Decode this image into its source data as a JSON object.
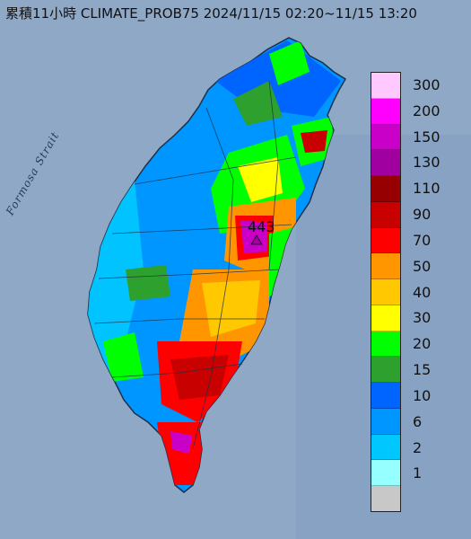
{
  "title": "累積11小時 CLIMATE_PROB75 2024/11/15 02:20~11/15 13:20",
  "strait_label": "Formosa Strait",
  "peak_value": "443",
  "legend": {
    "entries": [
      {
        "label": "300",
        "color": "#ffc8ff"
      },
      {
        "label": "200",
        "color": "#ff00ff"
      },
      {
        "label": "150",
        "color": "#c800c8"
      },
      {
        "label": "130",
        "color": "#a000a0"
      },
      {
        "label": "110",
        "color": "#960000"
      },
      {
        "label": "90",
        "color": "#c80000"
      },
      {
        "label": "70",
        "color": "#ff0000"
      },
      {
        "label": "50",
        "color": "#ff9600"
      },
      {
        "label": "40",
        "color": "#ffc800"
      },
      {
        "label": "30",
        "color": "#ffff00"
      },
      {
        "label": "20",
        "color": "#00ff00"
      },
      {
        "label": "15",
        "color": "#2ea02e"
      },
      {
        "label": "10",
        "color": "#0064ff"
      },
      {
        "label": "6",
        "color": "#0096ff"
      },
      {
        "label": "2",
        "color": "#00c8ff"
      },
      {
        "label": "1",
        "color": "#96ffff"
      },
      {
        "label": "",
        "color": "#c8c8c8"
      }
    ]
  }
}
